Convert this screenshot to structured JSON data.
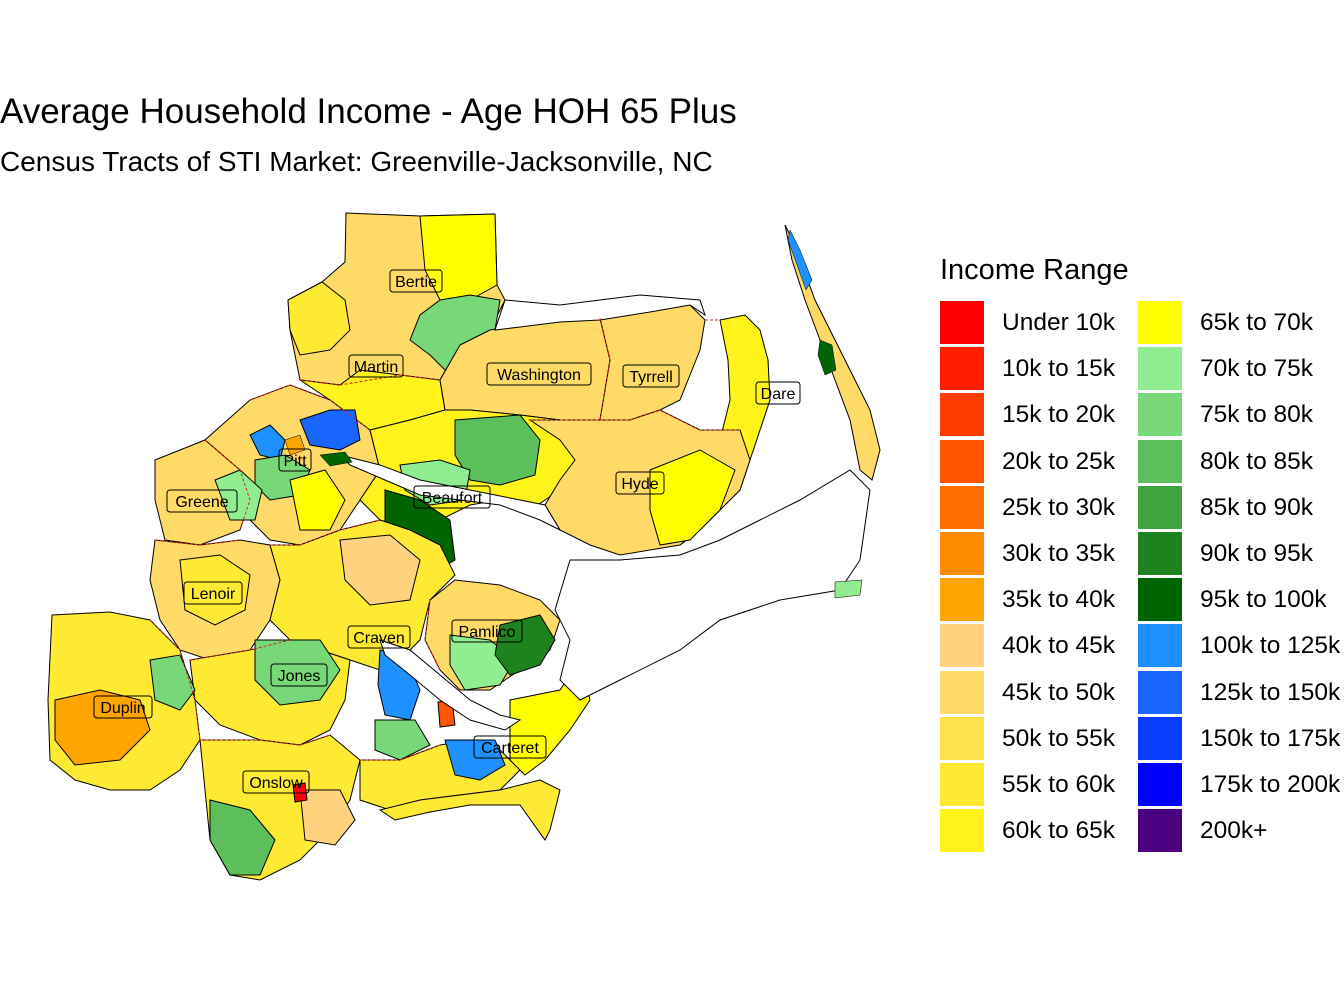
{
  "title": "Average Household Income - Age HOH 65 Plus",
  "subtitle": "Census Tracts of STI Market: Greenville-Jacksonville, NC",
  "legend": {
    "title": "Income Range",
    "items": [
      {
        "label": "Under 10k",
        "color": "#FF0000"
      },
      {
        "label": "10k to 15k",
        "color": "#FF1E00"
      },
      {
        "label": "15k to 20k",
        "color": "#FF3C00"
      },
      {
        "label": "20k to 25k",
        "color": "#FF5500"
      },
      {
        "label": "25k to 30k",
        "color": "#FF6E00"
      },
      {
        "label": "30k to 35k",
        "color": "#FF8C00"
      },
      {
        "label": "35k to 40k",
        "color": "#FFA500"
      },
      {
        "label": "40k to 45k",
        "color": "#FFD27F"
      },
      {
        "label": "45k to 50k",
        "color": "#FFDA66"
      },
      {
        "label": "50k to 55k",
        "color": "#FFE24C"
      },
      {
        "label": "55k to 60k",
        "color": "#FFEA33"
      },
      {
        "label": "60k to 65k",
        "color": "#FFF319"
      },
      {
        "label": "65k to 70k",
        "color": "#FFFF00"
      },
      {
        "label": "70k to 75k",
        "color": "#90EE90"
      },
      {
        "label": "75k to 80k",
        "color": "#78D878"
      },
      {
        "label": "80k to 85k",
        "color": "#5CBF5C"
      },
      {
        "label": "85k to 90k",
        "color": "#3FA33F"
      },
      {
        "label": "90k to 95k",
        "color": "#1E821E"
      },
      {
        "label": "95k to 100k",
        "color": "#006400"
      },
      {
        "label": "100k to 125k",
        "color": "#1E90FF"
      },
      {
        "label": "125k to 150k",
        "color": "#1866FF"
      },
      {
        "label": "150k to 175k",
        "color": "#0A3CFF"
      },
      {
        "label": "175k to 200k",
        "color": "#0000FF"
      },
      {
        "label": "200k+",
        "color": "#4B0082"
      }
    ]
  },
  "counties": [
    {
      "name": "Bertie"
    },
    {
      "name": "Martin"
    },
    {
      "name": "Washington"
    },
    {
      "name": "Tyrrell"
    },
    {
      "name": "Dare"
    },
    {
      "name": "Pitt"
    },
    {
      "name": "Greene"
    },
    {
      "name": "Beaufort"
    },
    {
      "name": "Hyde"
    },
    {
      "name": "Lenoir"
    },
    {
      "name": "Craven"
    },
    {
      "name": "Pamlico"
    },
    {
      "name": "Jones"
    },
    {
      "name": "Duplin"
    },
    {
      "name": "Carteret"
    },
    {
      "name": "Onslow"
    }
  ]
}
